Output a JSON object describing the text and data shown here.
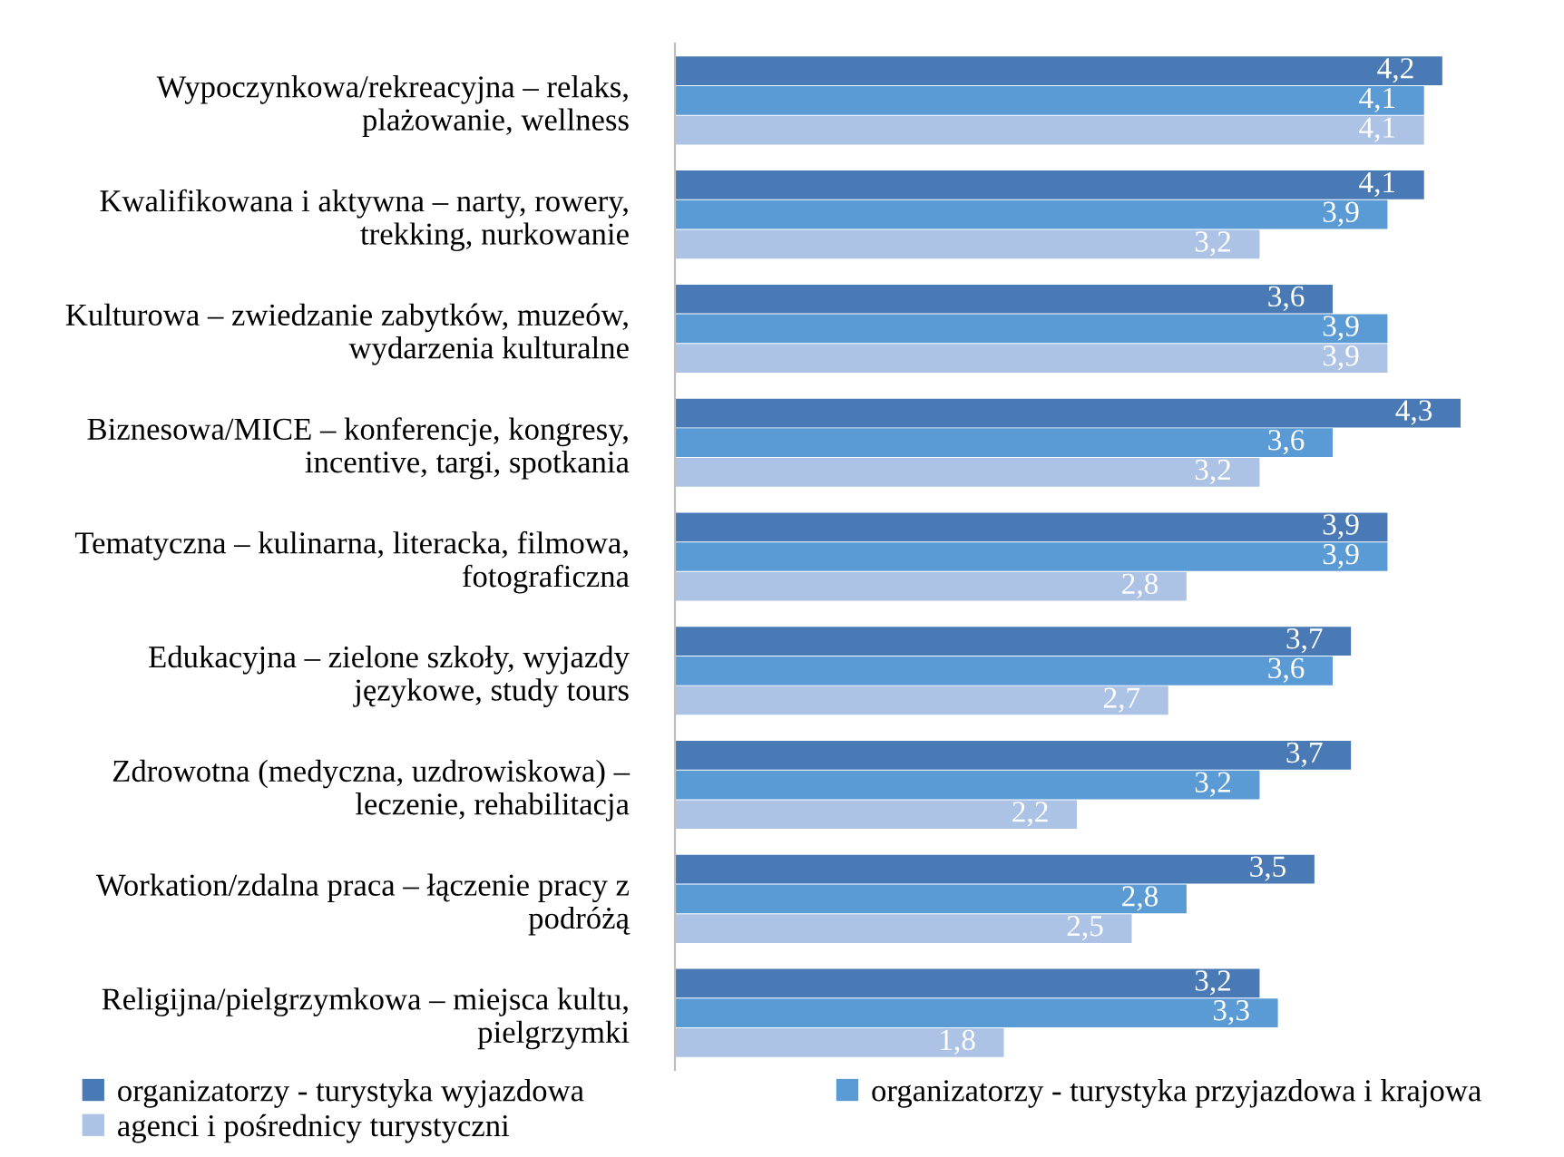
{
  "chart_data": {
    "type": "bar",
    "orientation": "horizontal",
    "legend": "bottom",
    "grid": false,
    "categories": [
      "Wypoczynkowa/rekreacyjna – relaks,\nplażowanie, wellness",
      "Kwalifikowana i aktywna – narty, rowery,\ntrekking, nurkowanie",
      "Kulturowa – zwiedzanie zabytków, muzeów,\nwydarzenia kulturalne",
      "Biznesowa/MICE – konferencje, kongresy,\nincentive, targi, spotkania",
      "Tematyczna – kulinarna, literacka, filmowa,\nfotograficzna",
      "Edukacyjna – zielone szkoły, wyjazdy\njęzykowe, study tours",
      "Zdrowotna (medyczna, uzdrowiskowa) –\nleczenie, rehabilitacja",
      "Workation/zdalna praca – łączenie pracy z\npodróżą",
      "Religijna/pielgrzymkowa – miejsca kultu,\npielgrzymki"
    ],
    "series": [
      {
        "name": "organizatorzy - turystyka wyjazdowa",
        "color": "#4a7ab5",
        "values": [
          4.2,
          4.1,
          3.6,
          4.3,
          3.9,
          3.7,
          3.7,
          3.5,
          3.2
        ],
        "value_labels": [
          "4,2",
          "4,1",
          "3,6",
          "4,3",
          "3,9",
          "3,7",
          "3,7",
          "3,5",
          "3,2"
        ]
      },
      {
        "name": "organizatorzy - turystyka przyjazdowa i krajowa",
        "color": "#5b9bd5",
        "values": [
          4.1,
          3.9,
          3.9,
          3.6,
          3.9,
          3.6,
          3.2,
          2.8,
          3.3
        ],
        "value_labels": [
          "4,1",
          "3,9",
          "3,9",
          "3,6",
          "3,9",
          "3,6",
          "3,2",
          "2,8",
          "3,3"
        ]
      },
      {
        "name": "agenci i pośrednicy turystyczni",
        "color": "#adc3e5",
        "values": [
          4.1,
          3.2,
          3.9,
          3.2,
          2.8,
          2.7,
          2.2,
          2.5,
          1.8
        ],
        "value_labels": [
          "4,1",
          "3,2",
          "3,9",
          "3,2",
          "2,8",
          "2,7",
          "2,2",
          "2,5",
          "1,8"
        ]
      }
    ]
  }
}
